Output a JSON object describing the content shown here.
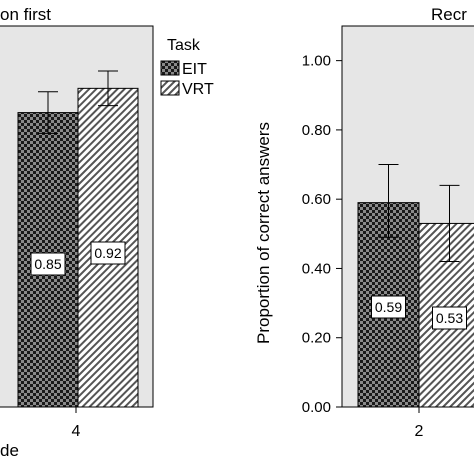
{
  "chart_data": [
    {
      "type": "bar",
      "title": "on first",
      "xlabel": "de",
      "categories": [
        "4"
      ],
      "series": [
        {
          "name": "EIT",
          "values": [
            0.85
          ],
          "error_low": [
            0.79
          ],
          "error_high": [
            0.91
          ]
        },
        {
          "name": "VRT",
          "values": [
            0.92
          ],
          "error_low": [
            0.87
          ],
          "error_high": [
            0.97
          ]
        }
      ],
      "data_labels": [
        "0.85",
        "0.92"
      ],
      "ylim": [
        0,
        1.1
      ],
      "legend": {
        "title": "Task",
        "position": "right",
        "entries": [
          "EIT",
          "VRT"
        ]
      }
    },
    {
      "type": "bar",
      "title": "Recr",
      "ylabel": "Proportion of correct answers",
      "categories": [
        "2"
      ],
      "series": [
        {
          "name": "EIT",
          "values": [
            0.59
          ],
          "error_low": [
            0.49
          ],
          "error_high": [
            0.7
          ]
        },
        {
          "name": "VRT",
          "values": [
            0.53
          ],
          "error_low": [
            0.42
          ],
          "error_high": [
            0.64
          ]
        }
      ],
      "data_labels": [
        "0.59",
        "0.53"
      ],
      "ylim": [
        0,
        1.1
      ],
      "yticks": [
        "0.00",
        "0.20",
        "0.40",
        "0.60",
        "0.80",
        "1.00"
      ]
    }
  ],
  "colors": {
    "plot_bg": "#e6e6e6",
    "eit_dark": "#1a1a1a",
    "eit_light": "#8a8a8a",
    "vrt_dark": "#555555",
    "vrt_light": "#ffffff"
  }
}
